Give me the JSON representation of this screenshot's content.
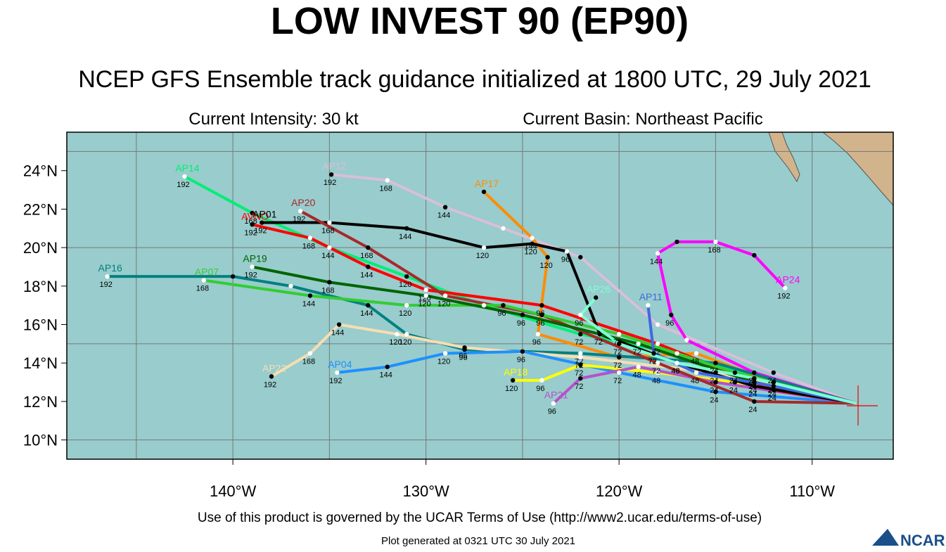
{
  "chart_data": {
    "type": "line",
    "title": "LOW INVEST 90 (EP90)",
    "subtitle": "NCEP GFS Ensemble track guidance initialized at 1800 UTC, 29 July 2021",
    "info_left": "Current Intensity: 30 kt",
    "info_right": "Current Basin: Northeast Pacific",
    "footer": "Use of this product is governed by the UCAR Terms of Use (http://www2.ucar.edu/terms-of-use)",
    "generated": "Plot generated at 0321 UTC   30 July 2021",
    "logo": "NCAR",
    "xlim": [
      -148.6,
      -105.8
    ],
    "ylim": [
      9,
      26
    ],
    "xticks": [
      {
        "value": -140,
        "label": "140°W"
      },
      {
        "value": -130,
        "label": "130°W"
      },
      {
        "value": -120,
        "label": "120°W"
      },
      {
        "value": -110,
        "label": "110°W"
      }
    ],
    "yticks": [
      {
        "value": 10,
        "label": "10°N"
      },
      {
        "value": 12,
        "label": "12°N"
      },
      {
        "value": 14,
        "label": "14°N"
      },
      {
        "value": 16,
        "label": "16°N"
      },
      {
        "value": 18,
        "label": "18°N"
      },
      {
        "value": 20,
        "label": "20°N"
      },
      {
        "value": 22,
        "label": "22°N"
      },
      {
        "value": 24,
        "label": "24°N"
      }
    ],
    "grid": true,
    "series": [
      {
        "name": "AP14",
        "color": "#00ee76",
        "x": [
          -107.7,
          -112,
          -117,
          -122,
          -127,
          -131,
          -135,
          -139,
          -142.5
        ],
        "y": [
          11.9,
          13,
          14.5,
          15.5,
          17,
          18.5,
          20,
          21.8,
          23.7
        ],
        "hours": [
          null,
          24,
          null,
          72,
          null,
          120,
          144,
          168,
          192
        ]
      },
      {
        "name": "AP12",
        "color": "#d8bfd8",
        "x": [
          -107.7,
          -112,
          -118,
          -122,
          -126,
          -129,
          -132,
          -134.9
        ],
        "y": [
          11.9,
          13.5,
          16,
          19.5,
          21,
          22.1,
          23.5,
          23.8
        ],
        "hours": [
          null,
          24,
          null,
          null,
          null,
          144,
          168,
          192
        ]
      },
      {
        "name": "AP17",
        "color": "#ff8c00",
        "x": [
          -107.7,
          -112,
          -116,
          -120,
          -124.2,
          -123.7,
          -124.5,
          -127
        ],
        "y": [
          11.9,
          13,
          14.5,
          14.3,
          15.5,
          19.5,
          20.5,
          22.9
        ],
        "hours": [
          null,
          24,
          48,
          72,
          96,
          120,
          144,
          null
        ]
      },
      {
        "name": "AP24",
        "color": "#ff00ff",
        "x": [
          -107.7,
          -113,
          -116.5,
          -117.3,
          -118,
          -117,
          -115,
          -113,
          -111.4
        ],
        "y": [
          11.9,
          13.5,
          15.2,
          16.5,
          19.7,
          20.3,
          20.3,
          19.6,
          17.9
        ],
        "hours": [
          null,
          24,
          null,
          96,
          144,
          null,
          168,
          null,
          192
        ]
      },
      {
        "name": "AP16",
        "color": "#008080",
        "x": [
          -107.7,
          -115,
          -122,
          -128,
          -131,
          -133,
          -137,
          -140,
          -146.5
        ],
        "y": [
          11.9,
          14,
          14.5,
          14.7,
          15.5,
          17,
          18,
          18.5,
          18.5
        ],
        "hours": [
          null,
          24,
          72,
          96,
          120,
          144,
          null,
          null,
          192
        ]
      },
      {
        "name": "AP22",
        "color": "#f5deb3",
        "x": [
          -107.7,
          -115,
          -122,
          -128,
          -131.5,
          -134.5,
          -136,
          -138
        ],
        "y": [
          11.9,
          13.5,
          14.3,
          14.8,
          15.5,
          16,
          14.5,
          13.3
        ],
        "hours": [
          null,
          24,
          72,
          96,
          120,
          144,
          168,
          192
        ]
      },
      {
        "name": "AP04",
        "color": "#1e90ff",
        "x": [
          -107.7,
          -115,
          -120,
          -125,
          -129,
          -132,
          -134.6
        ],
        "y": [
          11.9,
          12.5,
          13.5,
          14.6,
          14.5,
          13.8,
          13.5
        ],
        "hours": [
          null,
          24,
          72,
          96,
          120,
          144,
          192
        ]
      },
      {
        "name": "AP18",
        "color": "#ffff00",
        "x": [
          -107.7,
          -114,
          -118,
          -122,
          -124,
          -125.5
        ],
        "y": [
          11.9,
          13,
          13.5,
          13.9,
          13.1,
          13.1
        ],
        "hours": [
          null,
          24,
          48,
          72,
          96,
          120
        ]
      },
      {
        "name": "AP21",
        "color": "#b452cd",
        "x": [
          -107.7,
          -115,
          -119,
          -122,
          -123.4
        ],
        "y": [
          11.9,
          13,
          13.8,
          13.2,
          11.9
        ],
        "hours": [
          null,
          24,
          48,
          72,
          96
        ]
      },
      {
        "name": "AVNO",
        "color": "#ff0000",
        "x": [
          -107.7,
          -112,
          -118,
          -124,
          -130,
          -133,
          -136,
          -139
        ],
        "y": [
          11.9,
          12.6,
          15,
          17,
          17.8,
          19,
          20.5,
          21.2
        ],
        "hours": [
          null,
          24,
          72,
          96,
          120,
          144,
          168,
          192
        ]
      },
      {
        "name": "AP01",
        "color": "#000000",
        "x": [
          -107.7,
          -113,
          -117,
          -121,
          -122.7,
          -124.5,
          -127,
          -131,
          -135,
          -138.5
        ],
        "y": [
          11.9,
          12.8,
          14,
          15.5,
          19.8,
          20.2,
          20,
          21,
          21.3,
          21.3
        ],
        "hours": [
          null,
          24,
          48,
          72,
          96,
          120,
          120,
          144,
          168,
          192
        ]
      },
      {
        "name": "AP20",
        "color": "#a52a2a",
        "x": [
          -107.7,
          -113,
          -118,
          -124,
          -129,
          -133,
          -136.5
        ],
        "y": [
          11.9,
          12,
          14,
          16.5,
          17.5,
          20,
          21.9
        ],
        "hours": [
          null,
          24,
          72,
          96,
          120,
          168,
          192
        ]
      },
      {
        "name": "AP07",
        "color": "#32cd32",
        "x": [
          -107.7,
          -114,
          -120,
          -126,
          -131,
          -136,
          -141.5
        ],
        "y": [
          11.9,
          13.5,
          15.5,
          17,
          17,
          17.5,
          18.3
        ],
        "hours": [
          null,
          24,
          72,
          96,
          120,
          144,
          168
        ]
      },
      {
        "name": "AP19",
        "color": "#006400",
        "x": [
          -107.7,
          -113,
          -119,
          -125,
          -130,
          -135,
          -139
        ],
        "y": [
          11.9,
          13,
          15,
          16.5,
          17.5,
          18.2,
          19
        ],
        "hours": [
          null,
          24,
          72,
          96,
          120,
          168,
          192
        ]
      },
      {
        "name": "AP11",
        "color": "#4169e1",
        "x": [
          -107.7,
          -112,
          -116,
          -118.2,
          -118.5
        ],
        "y": [
          11.9,
          12.8,
          13.5,
          14.5,
          17
        ],
        "hours": [
          null,
          24,
          48,
          72,
          null
        ]
      },
      {
        "name": "AP26",
        "color": "#7fffd4",
        "x": [
          -107.7,
          -113,
          -117,
          -120,
          -122,
          -121.2
        ],
        "y": [
          11.9,
          13.2,
          14,
          15,
          16.5,
          17.4
        ],
        "hours": [
          null,
          24,
          48,
          72,
          96,
          null
        ]
      }
    ]
  }
}
